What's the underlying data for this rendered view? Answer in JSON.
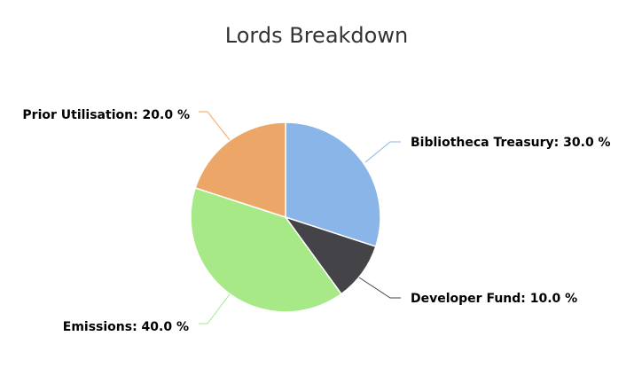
{
  "chart_data": {
    "type": "pie",
    "title": "Lords Breakdown",
    "label_format": "{name}: {value} %",
    "start_angle_deg": 0,
    "direction": "clockwise",
    "legend": "none",
    "slices": [
      {
        "name": "Bibliotheca Treasury",
        "value": 30.0,
        "display": "30.0",
        "color": "#8ab5e8"
      },
      {
        "name": "Developer Fund",
        "value": 10.0,
        "display": "10.0",
        "color": "#434348"
      },
      {
        "name": "Emissions",
        "value": 40.0,
        "display": "40.0",
        "color": "#a6e986"
      },
      {
        "name": "Prior Utilisation",
        "value": 20.0,
        "display": "20.0",
        "color": "#eca667"
      }
    ]
  }
}
